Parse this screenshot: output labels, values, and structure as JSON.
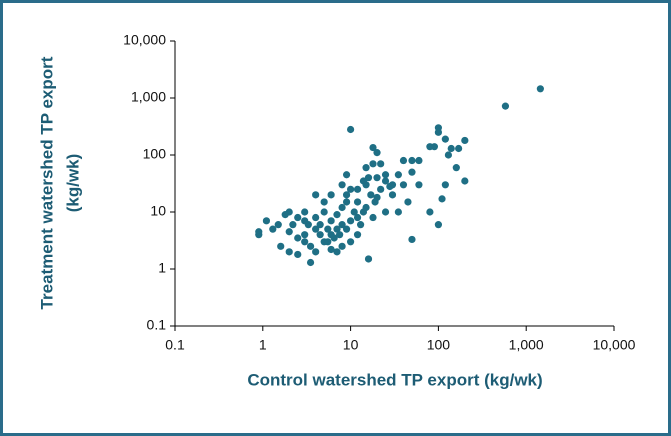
{
  "chart_data": {
    "type": "scatter",
    "xlabel": "Control watershed TP export (kg/wk)",
    "ylabel": [
      "Treatment watershed TP export",
      "(kg/wk)"
    ],
    "xscale": "log",
    "yscale": "log",
    "xlim": [
      0.1,
      10000
    ],
    "ylim": [
      0.1,
      10000
    ],
    "xticks": [
      0.1,
      1,
      10,
      100,
      {
        "value": 1000,
        "label": "1,000"
      },
      {
        "value": 10000,
        "label": "10,000"
      }
    ],
    "yticks": [
      0.1,
      1,
      10,
      100,
      {
        "value": 1000,
        "label": "1,000"
      },
      {
        "value": 10000,
        "label": "10,000"
      }
    ],
    "color": "#1f6f85",
    "x": [
      1450,
      580,
      10,
      100,
      100,
      90,
      80,
      120,
      200,
      170,
      140,
      130,
      160,
      200,
      120,
      100,
      110,
      80,
      60,
      50,
      60,
      40,
      50,
      40,
      45,
      35,
      30,
      28,
      25,
      20,
      18,
      20,
      18,
      15,
      15,
      12,
      22,
      25,
      16,
      50,
      9,
      10,
      8,
      9,
      6,
      4,
      5,
      3,
      2,
      2.5,
      1.5,
      1.1,
      0.9,
      0.9,
      1.3,
      1.6,
      2,
      2.5,
      3,
      3.5,
      4,
      5,
      6,
      7,
      8,
      10,
      12,
      14,
      7,
      8,
      10,
      12,
      4,
      3,
      2.5,
      2,
      3.3,
      4,
      5,
      6,
      7,
      8,
      9,
      11,
      13,
      15,
      18,
      20,
      22,
      3.5,
      4.5,
      5.5,
      6.5,
      7.5,
      9,
      1.8,
      2.2,
      3,
      4.5,
      5.5,
      6,
      17,
      19,
      25,
      30,
      35,
      12,
      14,
      16
    ],
    "y": [
      1450,
      720,
      280,
      300,
      250,
      140,
      140,
      190,
      180,
      130,
      130,
      100,
      60,
      35,
      30,
      6,
      17,
      10,
      30,
      80,
      80,
      80,
      50,
      30,
      15,
      10,
      20,
      28,
      35,
      40,
      135,
      110,
      70,
      60,
      30,
      25,
      70,
      45,
      1.5,
      3.3,
      45,
      25,
      30,
      20,
      20,
      20,
      15,
      10,
      10,
      8,
      6,
      7,
      4,
      4.5,
      5,
      2.5,
      2,
      1.8,
      3,
      1.3,
      2,
      3,
      4,
      5,
      6,
      7,
      8,
      10,
      2,
      2.5,
      3,
      4,
      5,
      4,
      3.5,
      4.5,
      6,
      8,
      10,
      7,
      9,
      12,
      15,
      10,
      6,
      12,
      8,
      18,
      25,
      2.5,
      4,
      3,
      3.5,
      4,
      5,
      9,
      6,
      7,
      6,
      5,
      2.2,
      20,
      15,
      10,
      30,
      45,
      15,
      35,
      40
    ]
  }
}
